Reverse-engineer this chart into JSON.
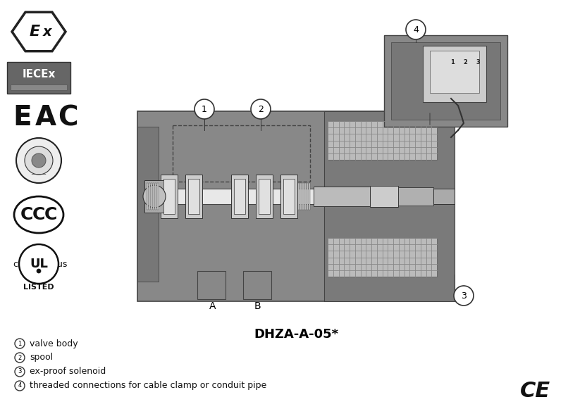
{
  "title": "DHZA-A-05*",
  "bg_color": "#ffffff",
  "legend_items": [
    {
      "num": "1",
      "text": "valve body"
    },
    {
      "num": "2",
      "text": "spool"
    },
    {
      "num": "3",
      "text": "ex-proof solenoid"
    },
    {
      "num": "4",
      "text": "threaded connections for cable clamp or conduit pipe"
    }
  ],
  "labels_AB": [
    "A",
    "B"
  ],
  "callout_numbers": [
    "1",
    "2",
    "3",
    "4"
  ],
  "valve_body_color": "#888888",
  "valve_light_color": "#aaaaaa",
  "valve_dark_color": "#555555",
  "valve_white_color": "#e8e8e8",
  "solenoid_color": "#999999",
  "grid_color": "#bbbbbb"
}
